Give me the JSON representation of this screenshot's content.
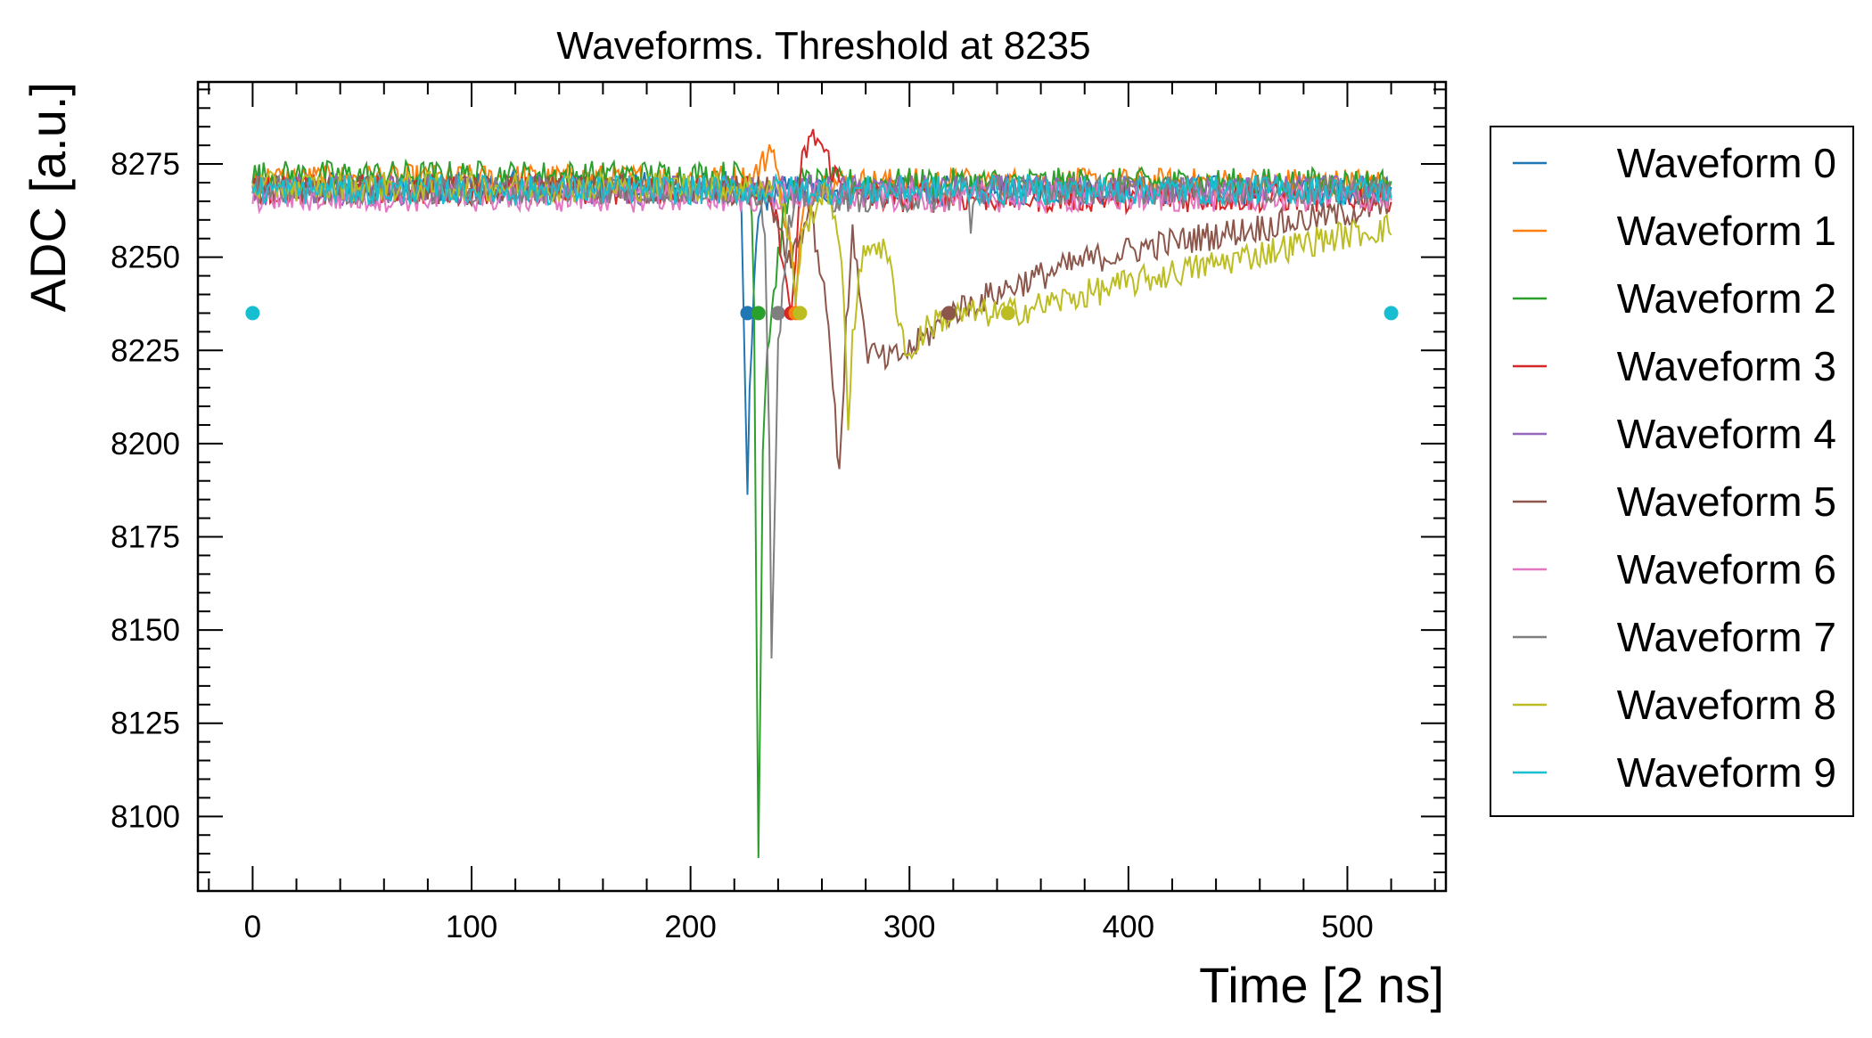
{
  "chart_data": {
    "type": "line",
    "title": "Waveforms. Threshold at 8235",
    "xlabel": "Time [2 ns]",
    "ylabel": "ADC [a.u.]",
    "xlim": [
      -25,
      545
    ],
    "ylim": [
      8080,
      8297
    ],
    "xticks": [
      0,
      100,
      200,
      300,
      400,
      500
    ],
    "yticks": [
      8100,
      8125,
      8150,
      8175,
      8200,
      8225,
      8250,
      8275
    ],
    "threshold": 8235,
    "legend_position": "outside-right",
    "grid": false,
    "series": [
      {
        "name": "Waveform 0",
        "color": "#1f77b4",
        "baseline": 8269,
        "threshold_crossing": 226,
        "points": [
          [
            0,
            8269
          ],
          [
            220,
            8269
          ],
          [
            223,
            8266
          ],
          [
            224,
            8240
          ],
          [
            225,
            8210
          ],
          [
            226,
            8184
          ],
          [
            227,
            8215
          ],
          [
            228,
            8225
          ],
          [
            230,
            8255
          ],
          [
            233,
            8265
          ],
          [
            240,
            8268
          ],
          [
            520,
            8268
          ]
        ]
      },
      {
        "name": "Waveform 1",
        "color": "#ff7f0e",
        "baseline": 8271,
        "threshold_crossing": 248,
        "points": [
          [
            0,
            8271
          ],
          [
            228,
            8271
          ],
          [
            235,
            8277
          ],
          [
            237,
            8282
          ],
          [
            240,
            8270
          ],
          [
            243,
            8262
          ],
          [
            245,
            8255
          ],
          [
            247,
            8248
          ],
          [
            248,
            8235
          ],
          [
            250,
            8255
          ],
          [
            253,
            8265
          ],
          [
            258,
            8270
          ],
          [
            520,
            8270
          ]
        ]
      },
      {
        "name": "Waveform 2",
        "color": "#2ca02c",
        "baseline": 8272,
        "threshold_crossing": 231,
        "points": [
          [
            0,
            8272
          ],
          [
            224,
            8272
          ],
          [
            228,
            8265
          ],
          [
            229,
            8240
          ],
          [
            230,
            8160
          ],
          [
            231,
            8090
          ],
          [
            232,
            8140
          ],
          [
            233,
            8200
          ],
          [
            235,
            8225
          ],
          [
            237,
            8235
          ],
          [
            240,
            8250
          ],
          [
            243,
            8262
          ],
          [
            248,
            8270
          ],
          [
            520,
            8270
          ]
        ]
      },
      {
        "name": "Waveform 3",
        "color": "#d62728",
        "baseline": 8268,
        "threshold_crossing": 246,
        "points": [
          [
            0,
            8268
          ],
          [
            230,
            8268
          ],
          [
            238,
            8262
          ],
          [
            242,
            8252
          ],
          [
            244,
            8240
          ],
          [
            246,
            8235
          ],
          [
            248,
            8250
          ],
          [
            251,
            8275
          ],
          [
            254,
            8281
          ],
          [
            258,
            8282
          ],
          [
            262,
            8277
          ],
          [
            268,
            8270
          ],
          [
            275,
            8266
          ],
          [
            300,
            8266
          ],
          [
            400,
            8266
          ],
          [
            520,
            8266
          ]
        ]
      },
      {
        "name": "Waveform 4",
        "color": "#9467bd",
        "baseline": 8268,
        "threshold_crossing": null,
        "points": [
          [
            0,
            8268
          ],
          [
            520,
            8268
          ]
        ]
      },
      {
        "name": "Waveform 5",
        "color": "#8c564b",
        "baseline": 8268,
        "threshold_crossing": 318,
        "points": [
          [
            0,
            8268
          ],
          [
            235,
            8268
          ],
          [
            240,
            8260
          ],
          [
            245,
            8250
          ],
          [
            250,
            8255
          ],
          [
            255,
            8265
          ],
          [
            258,
            8250
          ],
          [
            262,
            8240
          ],
          [
            265,
            8215
          ],
          [
            268,
            8193
          ],
          [
            271,
            8230
          ],
          [
            274,
            8255
          ],
          [
            276,
            8250
          ],
          [
            280,
            8225
          ],
          [
            290,
            8222
          ],
          [
            300,
            8225
          ],
          [
            310,
            8230
          ],
          [
            318,
            8235
          ],
          [
            330,
            8238
          ],
          [
            350,
            8243
          ],
          [
            380,
            8249
          ],
          [
            410,
            8253
          ],
          [
            440,
            8256
          ],
          [
            470,
            8259
          ],
          [
            500,
            8262
          ],
          [
            520,
            8264
          ]
        ]
      },
      {
        "name": "Waveform 6",
        "color": "#e377c2",
        "baseline": 8266,
        "threshold_crossing": null,
        "points": [
          [
            0,
            8266
          ],
          [
            520,
            8266
          ]
        ]
      },
      {
        "name": "Waveform 7",
        "color": "#7f7f7f",
        "baseline": 8268,
        "threshold_crossing": 240,
        "points": [
          [
            0,
            8268
          ],
          [
            230,
            8268
          ],
          [
            234,
            8260
          ],
          [
            236,
            8200
          ],
          [
            237,
            8141
          ],
          [
            238,
            8170
          ],
          [
            239,
            8200
          ],
          [
            240,
            8225
          ],
          [
            242,
            8240
          ],
          [
            245,
            8258
          ],
          [
            250,
            8266
          ],
          [
            320,
            8266
          ],
          [
            326,
            8270
          ],
          [
            328,
            8258
          ],
          [
            330,
            8268
          ],
          [
            520,
            8268
          ]
        ]
      },
      {
        "name": "Waveform 8",
        "color": "#bcbd22",
        "baseline": 8269,
        "threshold_crossing": 345,
        "points": [
          [
            0,
            8269
          ],
          [
            240,
            8269
          ],
          [
            244,
            8258
          ],
          [
            246,
            8255
          ],
          [
            248,
            8235
          ],
          [
            250,
            8252
          ],
          [
            255,
            8262
          ],
          [
            260,
            8266
          ],
          [
            264,
            8268
          ],
          [
            268,
            8250
          ],
          [
            270,
            8240
          ],
          [
            272,
            8205
          ],
          [
            274,
            8230
          ],
          [
            278,
            8248
          ],
          [
            283,
            8255
          ],
          [
            290,
            8250
          ],
          [
            296,
            8232
          ],
          [
            300,
            8222
          ],
          [
            305,
            8229
          ],
          [
            312,
            8233
          ],
          [
            320,
            8234
          ],
          [
            330,
            8235
          ],
          [
            345,
            8235
          ],
          [
            360,
            8237
          ],
          [
            380,
            8240
          ],
          [
            400,
            8243
          ],
          [
            430,
            8247
          ],
          [
            460,
            8251
          ],
          [
            490,
            8255
          ],
          [
            520,
            8258
          ]
        ]
      },
      {
        "name": "Waveform 9",
        "color": "#17becf",
        "baseline": 8268,
        "threshold_crossing": null,
        "points": [
          [
            0,
            8268
          ],
          [
            520,
            8268
          ]
        ]
      }
    ],
    "threshold_markers": [
      {
        "x": 0,
        "y": 8235,
        "color": "#17becf"
      },
      {
        "x": 226,
        "y": 8235,
        "color": "#1f77b4"
      },
      {
        "x": 231,
        "y": 8235,
        "color": "#2ca02c"
      },
      {
        "x": 240,
        "y": 8235,
        "color": "#7f7f7f"
      },
      {
        "x": 246,
        "y": 8235,
        "color": "#d62728"
      },
      {
        "x": 248,
        "y": 8235,
        "color": "#ff7f0e"
      },
      {
        "x": 250,
        "y": 8235,
        "color": "#bcbd22"
      },
      {
        "x": 318,
        "y": 8235,
        "color": "#8c564b"
      },
      {
        "x": 345,
        "y": 8235,
        "color": "#bcbd22"
      },
      {
        "x": 520,
        "y": 8235,
        "color": "#17becf"
      }
    ]
  }
}
